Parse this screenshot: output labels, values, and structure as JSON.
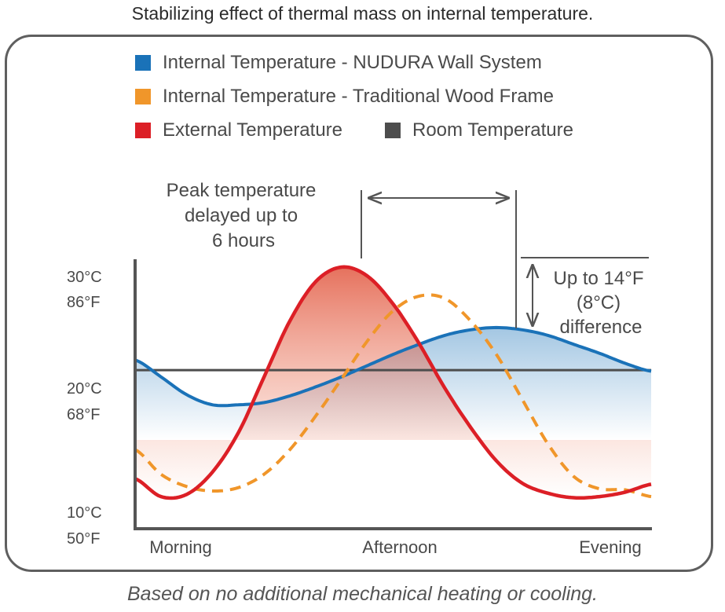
{
  "title": "Stabilizing effect of thermal mass on internal temperature.",
  "footnote": "Based on no additional mechanical heating or cooling.",
  "colors": {
    "nudura": "#1a72b8",
    "wood": "#f0962a",
    "external": "#dc1f26",
    "room": "#4d4d4d"
  },
  "chart_data": {
    "type": "line",
    "title": "Stabilizing effect of thermal mass on internal temperature.",
    "xlabel": "",
    "ylabel": "",
    "x_tick_labels": [
      "Morning",
      "Afternoon",
      "Evening"
    ],
    "y_tick_labels": [
      {
        "celsius": "30°C",
        "fahrenheit": "86°F"
      },
      {
        "celsius": "20°C",
        "fahrenheit": "68°F"
      },
      {
        "celsius": "10°C",
        "fahrenheit": "50°F"
      }
    ],
    "x": [
      0,
      5,
      10,
      15,
      20,
      25,
      30,
      35,
      40,
      45,
      50,
      55,
      60,
      65,
      70,
      75,
      80,
      85,
      90,
      95,
      100
    ],
    "ylim": [
      8,
      32
    ],
    "y_unit": "°C",
    "legend_position": "top-left",
    "series": [
      {
        "name": "Internal Temperature - NUDURA Wall System",
        "style": "solid",
        "values": [
          23.0,
          21.5,
          19.9,
          19.0,
          19.0,
          19.2,
          19.8,
          20.6,
          21.5,
          22.5,
          23.5,
          24.4,
          25.2,
          25.7,
          25.9,
          25.7,
          25.2,
          24.4,
          23.6,
          22.7,
          22.0
        ]
      },
      {
        "name": "Internal Temperature - Traditional Wood Frame",
        "style": "dashed",
        "values": [
          15.0,
          12.8,
          11.7,
          11.3,
          11.6,
          12.8,
          15.0,
          18.0,
          21.3,
          24.7,
          27.4,
          28.7,
          28.5,
          26.5,
          23.5,
          19.5,
          15.5,
          12.6,
          11.5,
          11.4,
          10.8
        ]
      },
      {
        "name": "External Temperature",
        "style": "solid",
        "values": [
          12.4,
          10.8,
          11.0,
          13.0,
          16.5,
          21.5,
          26.5,
          30.0,
          31.3,
          30.5,
          28.0,
          24.5,
          20.5,
          17.0,
          14.0,
          12.0,
          11.1,
          10.7,
          10.8,
          11.2,
          11.9
        ]
      },
      {
        "name": "Room Temperature",
        "style": "solid",
        "values": [
          22.1,
          22.1,
          22.1,
          22.1,
          22.1,
          22.1,
          22.1,
          22.1,
          22.1,
          22.1,
          22.1,
          22.1,
          22.1,
          22.1,
          22.1,
          22.1,
          22.1,
          22.1,
          22.1,
          22.1,
          22.1
        ]
      }
    ],
    "annotations": {
      "peak_delay": {
        "lines": [
          "Peak temperature",
          "delayed up to",
          "6 hours"
        ]
      },
      "difference": {
        "lines": [
          "Up to 14°F",
          "(8°C)",
          "difference"
        ]
      }
    }
  }
}
